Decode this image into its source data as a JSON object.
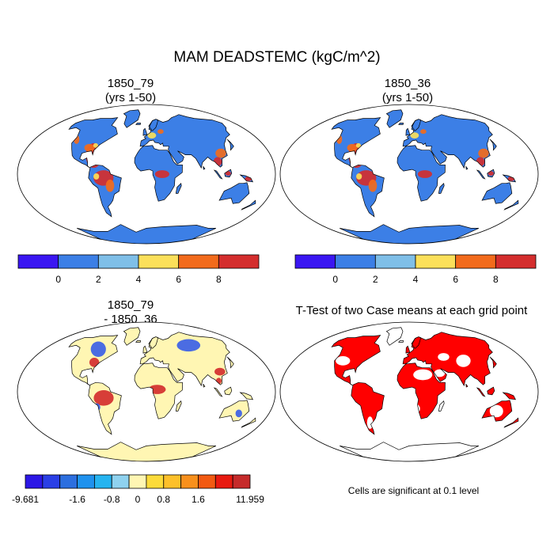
{
  "figure": {
    "title": "MAM DEADSTEMC (kgC/m^2)"
  },
  "panels": [
    {
      "id": "p1",
      "title_line1": "1850_79",
      "title_line2": "(yrs 1-50)"
    },
    {
      "id": "p2",
      "title_line1": "1850_36",
      "title_line2": "(yrs 1-50)"
    },
    {
      "id": "p3",
      "title_line1": "1850_79",
      "title_line2": "- 1850_36"
    },
    {
      "id": "p4",
      "title_line1": "T-Test of two Case means at each grid point",
      "title_line2": ""
    }
  ],
  "colorbars": {
    "top": {
      "colors": [
        "#3a16f2",
        "#3c7fe6",
        "#7fbfe8",
        "#fbe05a",
        "#f26b1c",
        "#d42e2e"
      ],
      "labels": [
        "0",
        "2",
        "4",
        "6",
        "8"
      ]
    },
    "diff": {
      "colors": [
        "#2c17e6",
        "#2a3fe6",
        "#2c6fdf",
        "#1f92ee",
        "#26b4f0",
        "#8fd2ef",
        "#fff6b3",
        "#fcdb3a",
        "#fdc02a",
        "#f8901c",
        "#f25a12",
        "#e81a10",
        "#c62b2b"
      ],
      "labels": [
        "-9.681",
        "-1.6",
        "-0.8",
        "0",
        "0.8",
        "1.6",
        "11.959"
      ]
    }
  },
  "ttest_note": "Cells are significant at 0.1 level",
  "map_colors": {
    "ocean": "#ffffff",
    "land_mean": "#3c7fe6",
    "high_1": "#fbe05a",
    "high_2": "#f26b1c",
    "high_3": "#d42e2e",
    "diff_base": "#fff6b3",
    "diff_neg": "#3c5fe6",
    "diff_pos": "#d42e2e",
    "sig": "#ff0000"
  }
}
